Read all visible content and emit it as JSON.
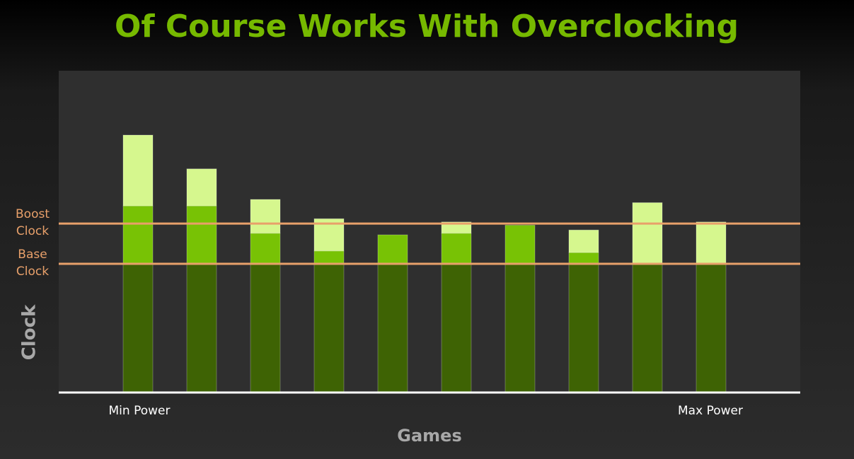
{
  "chart_data": {
    "type": "stacked_bar",
    "title": "Of Course Works With Overclocking",
    "xlabel": "Games",
    "ylabel": "Clock",
    "x_annotations": [
      "Min Power",
      "Max Power"
    ],
    "categories": [
      null,
      null,
      null,
      null,
      null,
      null,
      null,
      null,
      null,
      null
    ],
    "series": [
      {
        "color": "#3e6304",
        "values": [
          40,
          40,
          40,
          40,
          40,
          40,
          40,
          40,
          40,
          40
        ]
      },
      {
        "color": "#78c205",
        "values": [
          18,
          18,
          9.5,
          4,
          9,
          9.5,
          12,
          3.5,
          0,
          0
        ]
      },
      {
        "color": "#d6f78e",
        "values": [
          22,
          11.5,
          10.5,
          10,
          0,
          3.5,
          0,
          7,
          19,
          13
        ]
      }
    ],
    "ylim": [
      0,
      100
    ],
    "reference_lines": [
      {
        "label": [
          "Boost",
          "Clock"
        ],
        "value": 52.5,
        "color": "#e8a06a"
      },
      {
        "label": [
          "Base",
          "Clock"
        ],
        "value": 40,
        "color": "#e8a06a"
      }
    ]
  }
}
